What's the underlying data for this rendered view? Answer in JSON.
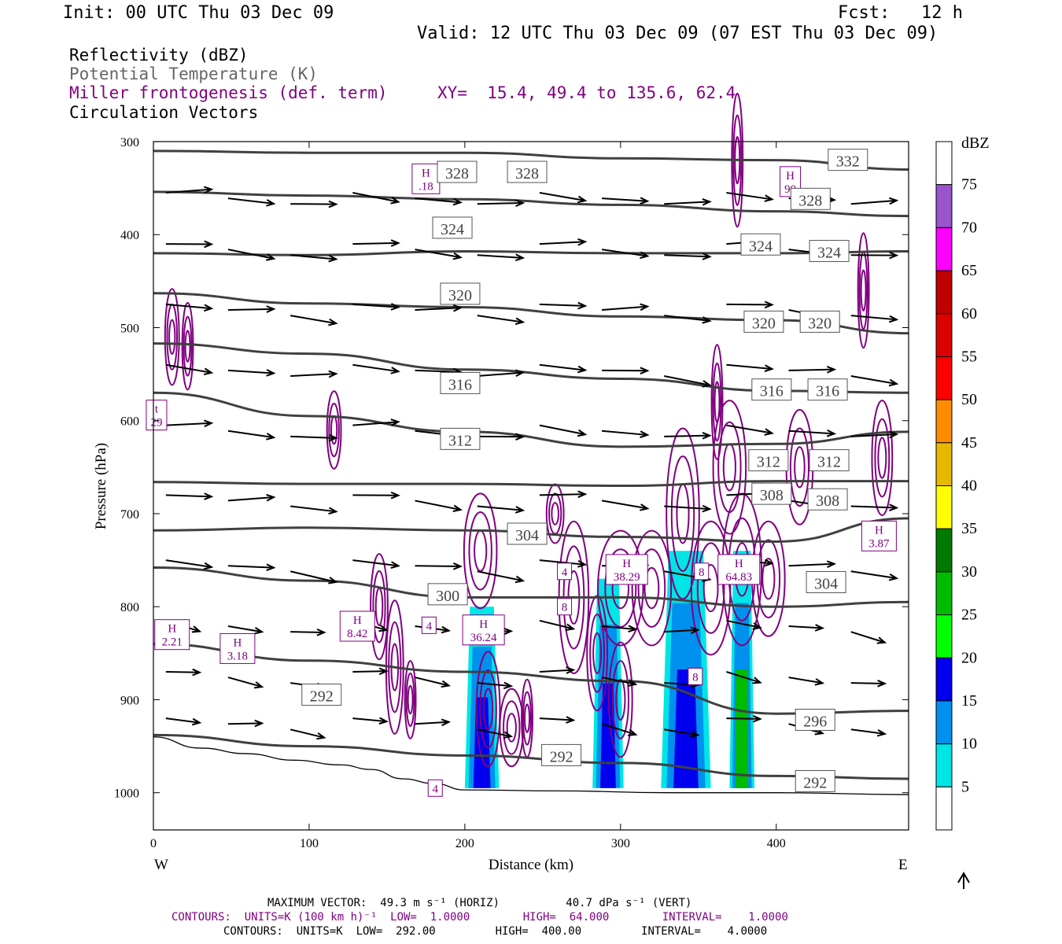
{
  "header": {
    "init": "Init: 00 UTC Thu 03 Dec 09",
    "fcst": "Fcst:   12 h",
    "valid": "Valid: 12 UTC Thu 03 Dec 09 (07 EST Thu 03 Dec 09)"
  },
  "legend": {
    "line1": "Reflectivity (dBZ)",
    "line2": "Potential Temperature (K)",
    "line3": "Miller frontogenesis (def. term)",
    "xy": "XY=  15.4, 49.4 to 135.6, 62.4",
    "line4": "Circulation Vectors"
  },
  "colorbar": {
    "unit": "dBZ",
    "levels": [
      "75",
      "70",
      "65",
      "60",
      "55",
      "50",
      "45",
      "40",
      "35",
      "30",
      "25",
      "20",
      "15",
      "10",
      "5"
    ],
    "colors": [
      "#9955cc",
      "#ff00ff",
      "#c00000",
      "#dd0000",
      "#ff0000",
      "#ff8c00",
      "#e6b800",
      "#ffff00",
      "#007a00",
      "#00bb00",
      "#00ff00",
      "#0000ee",
      "#0090ee",
      "#00e5e5",
      "#ffffff"
    ]
  },
  "footer": {
    "maxvec": "MAXIMUM VECTOR:  49.3 m s⁻¹ (HORIZ)          40.7 dPa s⁻¹ (VERT)",
    "contours1": "CONTOURS:  UNITS=K (100 km h)⁻¹  LOW=  1.0000        HIGH=  64.000        INTERVAL=    1.0000",
    "contours2": "CONTOURS:  UNITS=K  LOW=  292.00         HIGH=  400.00         INTERVAL=    4.0000"
  },
  "chart_data": {
    "type": "cross-section",
    "xlabel": "Distance (km)",
    "ylabel": "Pressure (hPa)",
    "x_left_label": "W",
    "x_right_label": "E",
    "xlim": [
      0,
      485
    ],
    "ylim": [
      1040,
      300
    ],
    "xticks": [
      0,
      100,
      200,
      300,
      400
    ],
    "yticks": [
      300,
      400,
      500,
      600,
      700,
      800,
      900,
      1000
    ],
    "theta_contours": [
      {
        "value": 332,
        "x": [
          0,
          100,
          200,
          300,
          400,
          485
        ],
        "p": [
          310,
          312,
          312,
          318,
          320,
          330
        ]
      },
      {
        "value": 328,
        "x": [
          0,
          100,
          200,
          300,
          400,
          485
        ],
        "p": [
          354,
          358,
          362,
          368,
          375,
          380
        ]
      },
      {
        "value": 324,
        "x": [
          0,
          100,
          200,
          300,
          400,
          485
        ],
        "p": [
          420,
          422,
          418,
          420,
          420,
          418
        ]
      },
      {
        "value": 320,
        "x": [
          0,
          100,
          200,
          300,
          400,
          485
        ],
        "p": [
          463,
          474,
          478,
          488,
          492,
          506
        ]
      },
      {
        "value": 316,
        "x": [
          0,
          100,
          200,
          300,
          400,
          485
        ],
        "p": [
          517,
          528,
          545,
          555,
          568,
          570
        ]
      },
      {
        "value": 312,
        "x": [
          0,
          100,
          200,
          300,
          400,
          485
        ],
        "p": [
          570,
          595,
          612,
          628,
          625,
          612
        ]
      },
      {
        "value": 308,
        "x": [
          0,
          100,
          200,
          300,
          400,
          485
        ],
        "p": [
          666,
          668,
          668,
          670,
          665,
          665
        ]
      },
      {
        "value": 304,
        "x": [
          0,
          100,
          200,
          300,
          400,
          485
        ],
        "p": [
          718,
          715,
          718,
          725,
          730,
          705
        ]
      },
      {
        "value": 300,
        "x": [
          0,
          100,
          200,
          300,
          400,
          485
        ],
        "p": [
          758,
          772,
          790,
          790,
          800,
          795
        ]
      },
      {
        "value": 296,
        "x": [
          0,
          100,
          200,
          300,
          400,
          485
        ],
        "p": [
          840,
          858,
          870,
          880,
          915,
          912
        ]
      },
      {
        "value": 292,
        "x": [
          0,
          100,
          200,
          300,
          400,
          485
        ],
        "p": [
          938,
          950,
          960,
          968,
          982,
          985
        ]
      }
    ],
    "theta_labels": [
      {
        "text": "332",
        "x": 446,
        "p": 320
      },
      {
        "text": "328",
        "x": 195,
        "p": 333
      },
      {
        "text": "328",
        "x": 240,
        "p": 333
      },
      {
        "text": "328",
        "x": 422,
        "p": 362
      },
      {
        "text": "324",
        "x": 192,
        "p": 393
      },
      {
        "text": "324",
        "x": 390,
        "p": 411
      },
      {
        "text": "324",
        "x": 434,
        "p": 418
      },
      {
        "text": "320",
        "x": 197,
        "p": 464
      },
      {
        "text": "320",
        "x": 392,
        "p": 494
      },
      {
        "text": "320",
        "x": 428,
        "p": 494
      },
      {
        "text": "316",
        "x": 197,
        "p": 560
      },
      {
        "text": "316",
        "x": 397,
        "p": 567
      },
      {
        "text": "316",
        "x": 433,
        "p": 567
      },
      {
        "text": "312",
        "x": 197,
        "p": 620
      },
      {
        "text": "312",
        "x": 395,
        "p": 643
      },
      {
        "text": "312",
        "x": 434,
        "p": 643
      },
      {
        "text": "308",
        "x": 397,
        "p": 679
      },
      {
        "text": "308",
        "x": 433,
        "p": 685
      },
      {
        "text": "304",
        "x": 240,
        "p": 722
      },
      {
        "text": "304",
        "x": 432,
        "p": 774
      },
      {
        "text": "300",
        "x": 189,
        "p": 787
      },
      {
        "text": "296",
        "x": 425,
        "p": 922
      },
      {
        "text": "292",
        "x": 108,
        "p": 895
      },
      {
        "text": "292",
        "x": 262,
        "p": 960
      },
      {
        "text": "292",
        "x": 425,
        "p": 988
      }
    ],
    "frontogenesis_labels": [
      {
        "text": "H|.18",
        "x": 175,
        "p": 340
      },
      {
        "text": "H|90",
        "x": 409,
        "p": 343
      },
      {
        "text": "t|29",
        "x": 2,
        "p": 594
      },
      {
        "text": "H|3.87",
        "x": 466,
        "p": 724
      },
      {
        "text": "H|38.29",
        "x": 304,
        "p": 760
      },
      {
        "text": "H|64.83",
        "x": 376,
        "p": 760
      },
      {
        "text": "4",
        "x": 264,
        "p": 762
      },
      {
        "text": "8",
        "x": 352,
        "p": 762
      },
      {
        "text": "8",
        "x": 264,
        "p": 800
      },
      {
        "text": "H|8.42",
        "x": 131,
        "p": 821
      },
      {
        "text": "H|36.24",
        "x": 212,
        "p": 825
      },
      {
        "text": "4",
        "x": 177,
        "p": 820
      },
      {
        "text": "H|2.21",
        "x": 12,
        "p": 830
      },
      {
        "text": "H|3.18",
        "x": 54,
        "p": 845
      },
      {
        "text": "8",
        "x": 348,
        "p": 875
      },
      {
        "text": "4",
        "x": 181,
        "p": 995
      }
    ],
    "reflectivity_columns": [
      {
        "x_left": 200,
        "x_right": 222,
        "p_top": 800,
        "p_bottom": 995,
        "max_dbz": 20
      },
      {
        "x_left": 282,
        "x_right": 302,
        "p_top": 770,
        "p_bottom": 995,
        "max_dbz": 20
      },
      {
        "x_left": 326,
        "x_right": 358,
        "p_top": 740,
        "p_bottom": 995,
        "max_dbz": 20
      },
      {
        "x_left": 370,
        "x_right": 386,
        "p_top": 740,
        "p_bottom": 995,
        "max_dbz": 25
      }
    ]
  }
}
